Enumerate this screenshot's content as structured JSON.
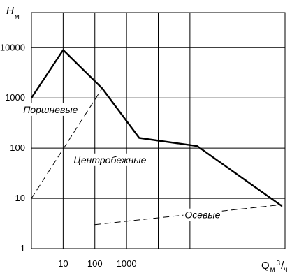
{
  "chart_data": {
    "type": "line",
    "title": "",
    "ylabel": {
      "main": "H",
      "sub": "м"
    },
    "xlabel": {
      "main": "Q",
      "sub_unit": "м",
      "sup": "3",
      "sub_time": "ч"
    },
    "y_scale": "log",
    "ylim": [
      1,
      50000
    ],
    "y_ticks": [
      {
        "value": 1,
        "label": "1"
      },
      {
        "value": 10,
        "label": "10"
      },
      {
        "value": 100,
        "label": "100"
      },
      {
        "value": 1000,
        "label": "1000"
      },
      {
        "value": 10000,
        "label": "10000"
      }
    ],
    "x_scale": "log",
    "xlim": [
      1,
      100000000
    ],
    "x_ticks": [
      {
        "value": 10,
        "label": "10"
      },
      {
        "value": 100,
        "label": "100"
      },
      {
        "value": 1000,
        "label": "1000"
      }
    ],
    "x_gridlines": [
      10,
      100,
      1000,
      10000,
      100000
    ],
    "grid": true,
    "series": [
      {
        "style": "solid",
        "points": [
          {
            "x": 1,
            "y": 1000
          },
          {
            "x": 10,
            "y": 9000
          },
          {
            "x": 170,
            "y": 1550
          },
          {
            "x": 2500,
            "y": 160
          },
          {
            "x": 170000,
            "y": 110
          },
          {
            "x": 80000000,
            "y": 7
          }
        ]
      },
      {
        "style": "dashed",
        "points": [
          {
            "x": 1,
            "y": 10
          },
          {
            "x": 170,
            "y": 1550
          }
        ]
      },
      {
        "style": "dashed",
        "points": [
          {
            "x": 100,
            "y": 3
          },
          {
            "x": 80000000,
            "y": 7.5
          }
        ]
      }
    ],
    "annotations": [
      {
        "text": "Поршневые",
        "x": 4,
        "y": 500
      },
      {
        "text": "Центробежные",
        "x": 300,
        "y": 50
      },
      {
        "text": "Осевые",
        "x": 250000,
        "y": 4
      }
    ]
  }
}
